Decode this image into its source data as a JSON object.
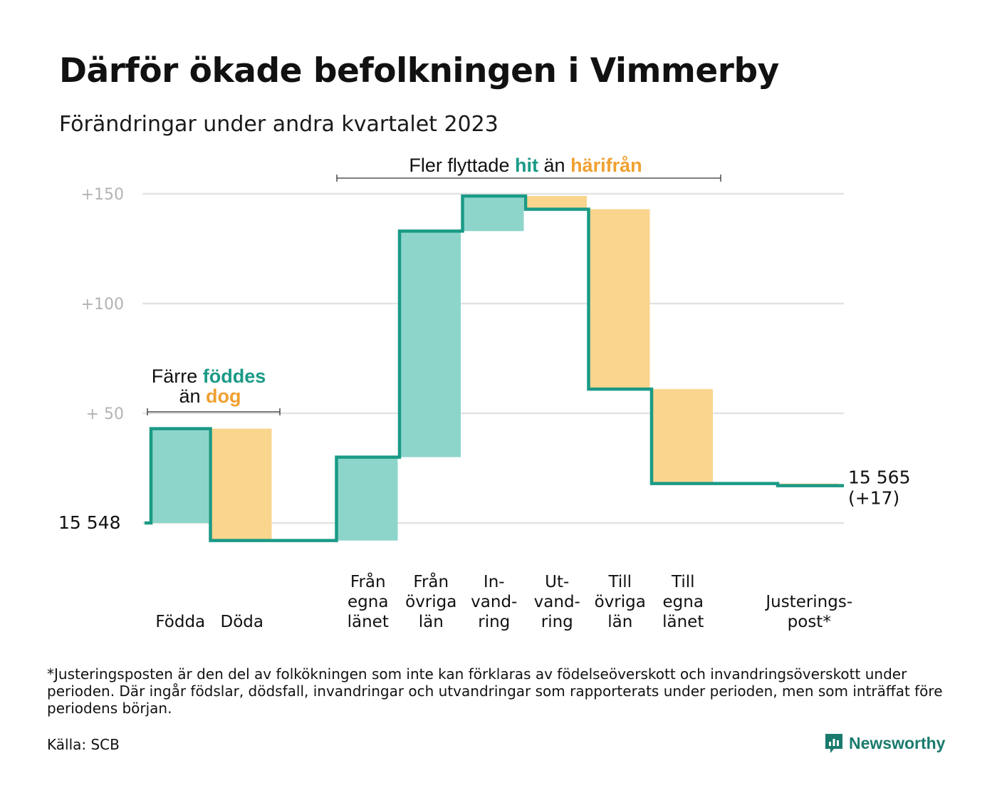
{
  "title": "Därför ökade befolkningen i Vimmerby",
  "subtitle": "Förändringar under andra kvartalet 2023",
  "footnote": "*Justeringsposten är den del av folkökningen som inte kan förklaras av födelseöverskott och invandringsöverskott under perioden. Där ingår födslar, dödsfall, invandringar och utvandringar som rapporterats under perioden, men som inträffat före periodens början.",
  "source": "Källa: SCB",
  "brand": {
    "name": "Newsworthy",
    "icon": "newsworthy-logo-icon"
  },
  "colors": {
    "increase": "#8dd5ca",
    "decrease": "#fad58e",
    "line": "#1a9a86",
    "grid": "#e3e3e3",
    "tick": "#b3b3b3"
  },
  "annotations": {
    "births": {
      "line1_prefix": "Färre",
      "line1_highlight": "föddes",
      "line2_prefix": "än",
      "line2_highlight": "dog"
    },
    "migration": {
      "prefix": "Fler flyttade",
      "highlight1": "hit",
      "middle": "än",
      "highlight2": "härifrån"
    }
  },
  "chart_data": {
    "type": "waterfall",
    "title": "Därför ökade befolkningen i Vimmerby",
    "subtitle": "Förändringar under andra kvartalet 2023",
    "start_value": 15548,
    "start_label": "15  548",
    "end_value": 15565,
    "end_label": [
      "15 565",
      "(+17)"
    ],
    "y_ticks": [
      {
        "value": 150,
        "label": "+150"
      },
      {
        "value": 100,
        "label": "+100"
      },
      {
        "value": 50,
        "label": "+  50"
      }
    ],
    "ylim": [
      -10,
      152
    ],
    "grid": true,
    "categories": [
      {
        "label": [
          "Födda"
        ],
        "value": 43
      },
      {
        "label": [
          "Döda"
        ],
        "value": -51
      },
      {
        "label": [],
        "value": 0
      },
      {
        "label": [
          "Från",
          "egna",
          "länet"
        ],
        "value": 38
      },
      {
        "label": [
          "Från",
          "övriga",
          "län"
        ],
        "value": 103
      },
      {
        "label": [
          "In-",
          "vand-",
          "ring"
        ],
        "value": 16
      },
      {
        "label": [
          "Ut-",
          "vand-",
          "ring"
        ],
        "value": -6
      },
      {
        "label": [
          "Till",
          "övriga",
          "län"
        ],
        "value": -82
      },
      {
        "label": [
          "Till",
          "egna",
          "länet"
        ],
        "value": -43
      },
      {
        "label": [],
        "value": 0
      },
      {
        "label": [
          "Justerings-",
          "post*"
        ],
        "value": -1
      }
    ]
  }
}
